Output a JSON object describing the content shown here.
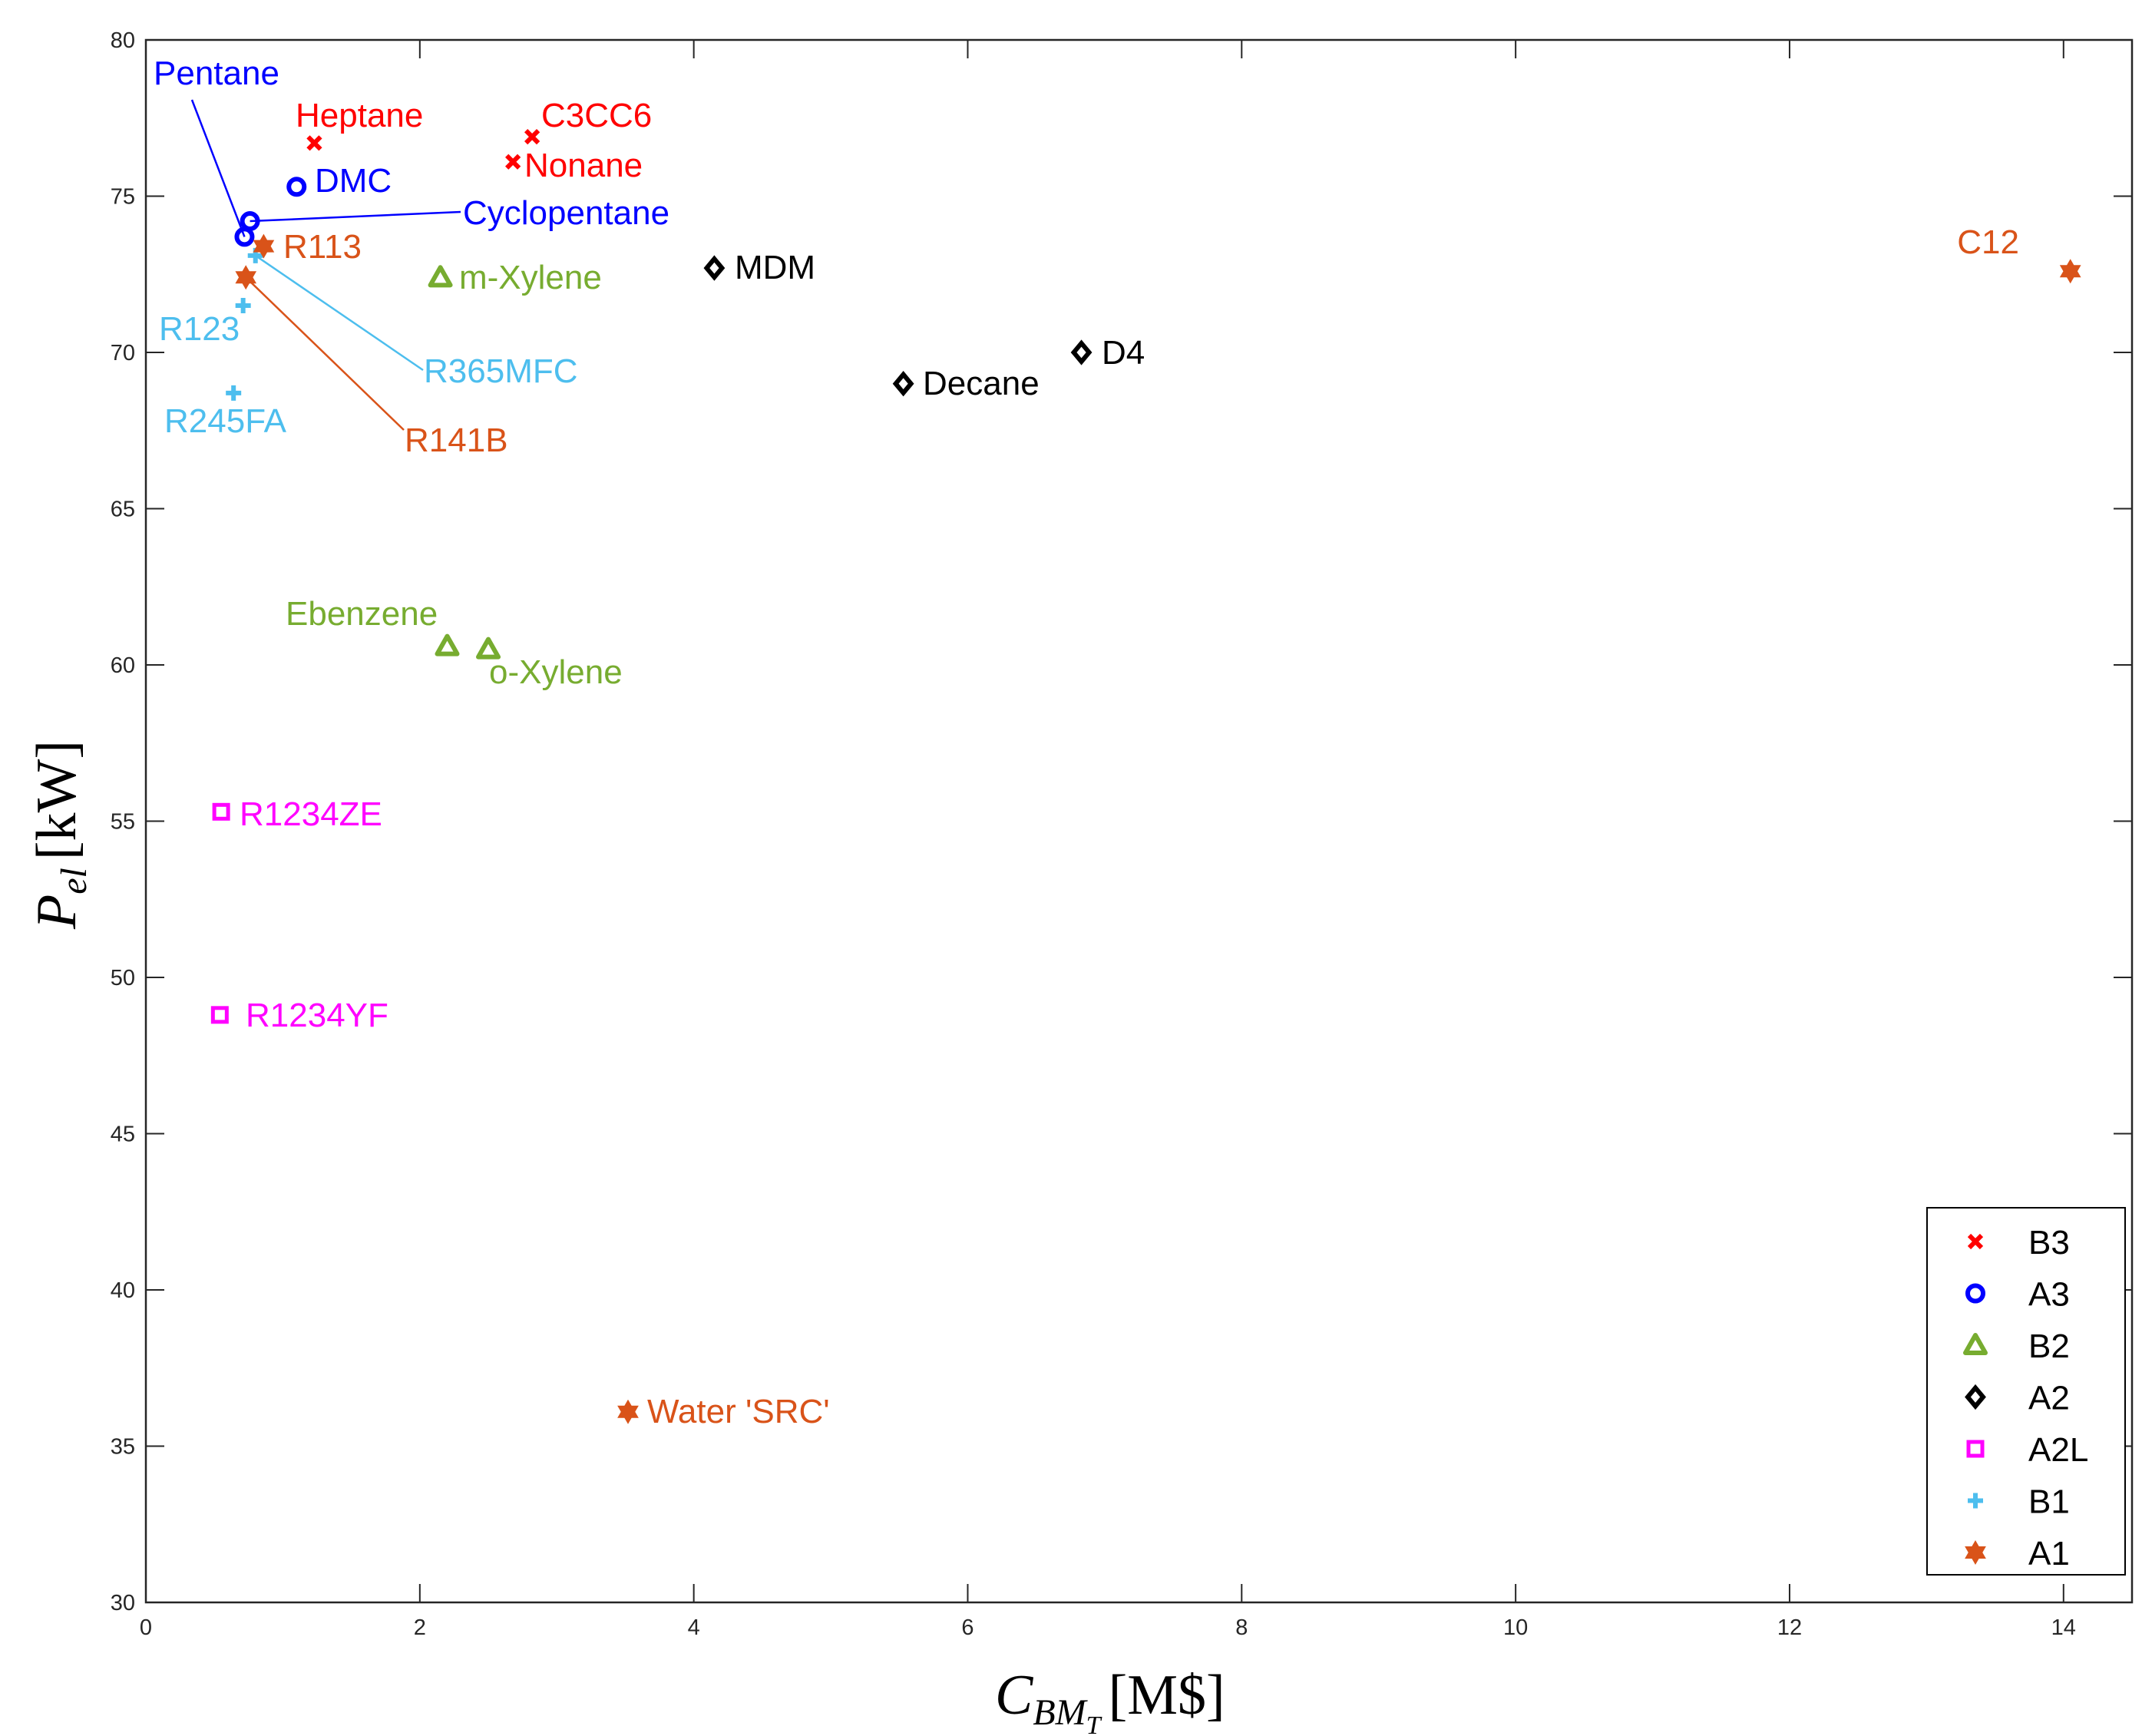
{
  "chart_data": {
    "type": "scatter",
    "xlabel": {
      "main": "C",
      "sub": "BM",
      "subsub": "T",
      "unit": "[M$]"
    },
    "ylabel": {
      "main": "P",
      "sub": "el",
      "unit": "[kW]"
    },
    "xlim": [
      0,
      14.5
    ],
    "ylim": [
      30,
      80
    ],
    "xticks": [
      0,
      2,
      4,
      6,
      8,
      10,
      12,
      14
    ],
    "yticks": [
      30,
      35,
      40,
      45,
      50,
      55,
      60,
      65,
      70,
      75,
      80
    ],
    "grid": false,
    "legend_position": "bottom-right",
    "series": [
      {
        "name": "B3",
        "marker": "x",
        "color": "#ff0000",
        "points": [
          {
            "label": "Heptane",
            "x": 1.23,
            "y": 76.7
          },
          {
            "label": "C3CC6",
            "x": 2.82,
            "y": 76.9
          },
          {
            "label": "Nonane",
            "x": 2.68,
            "y": 76.1
          }
        ]
      },
      {
        "name": "A3",
        "marker": "circle",
        "color": "#0000ff",
        "points": [
          {
            "label": "Pentane",
            "x": 0.72,
            "y": 73.7
          },
          {
            "label": "DMC",
            "x": 1.1,
            "y": 75.3
          },
          {
            "label": "Cyclopentane",
            "x": 0.76,
            "y": 74.2
          }
        ]
      },
      {
        "name": "B2",
        "marker": "triangle",
        "color": "#77ac30",
        "points": [
          {
            "label": "m-Xylene",
            "x": 2.15,
            "y": 72.4
          },
          {
            "label": "Ebenzene",
            "x": 2.2,
            "y": 60.6
          },
          {
            "label": "o-Xylene",
            "x": 2.5,
            "y": 60.5
          }
        ]
      },
      {
        "name": "A2",
        "marker": "diamond",
        "color": "#000000",
        "points": [
          {
            "label": "MDM",
            "x": 4.15,
            "y": 72.7
          },
          {
            "label": "D4",
            "x": 6.83,
            "y": 70.0
          },
          {
            "label": "Decane",
            "x": 5.53,
            "y": 69.0
          }
        ]
      },
      {
        "name": "A2L",
        "marker": "square",
        "color": "#ff00ff",
        "points": [
          {
            "label": "R1234ZE",
            "x": 0.55,
            "y": 55.3
          },
          {
            "label": "R1234YF",
            "x": 0.54,
            "y": 48.8
          }
        ]
      },
      {
        "name": "B1",
        "marker": "plus",
        "color": "#4dbeee",
        "points": [
          {
            "label": "R123",
            "x": 0.71,
            "y": 71.5
          },
          {
            "label": "R365MFC",
            "x": 0.8,
            "y": 73.1
          },
          {
            "label": "R245FA",
            "x": 0.64,
            "y": 68.7
          }
        ]
      },
      {
        "name": "A1",
        "marker": "hexagram",
        "color": "#d95319",
        "points": [
          {
            "label": "R113",
            "x": 0.86,
            "y": 73.4
          },
          {
            "label": "R141B",
            "x": 0.73,
            "y": 72.4
          },
          {
            "label": "C12",
            "x": 14.05,
            "y": 72.6
          },
          {
            "label": "Water 'SRC'",
            "x": 3.52,
            "y": 36.1
          }
        ]
      }
    ]
  }
}
